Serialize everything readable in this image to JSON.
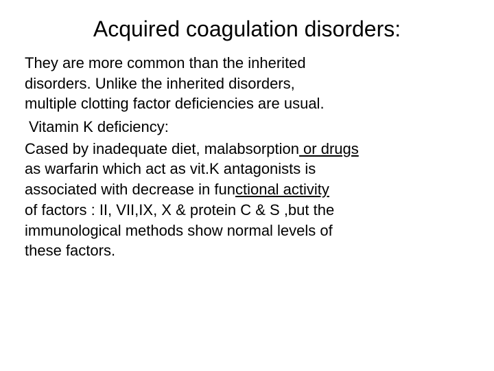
{
  "slide": {
    "title": "Acquired coagulation disorders:",
    "title_color": "#000000",
    "title_fontsize": 32,
    "body_fontsize": 22,
    "background_color": "#ffffff",
    "text_color": "#000000",
    "paragraph1": {
      "line1": "They are more common than the inherited",
      "line2": "disorders. Unlike the inherited disorders,",
      "line3": "multiple clotting factor deficiencies are usual."
    },
    "subtitle": " Vitamin K deficiency:",
    "paragraph2": {
      "line1_prefix": "Cased by inadequate diet, malabsorption",
      "line1_underlined": " or drugs ",
      "line2": "as warfarin which act as vit.K antagonists is",
      "line3_prefix": "associated with decrease in fun",
      "line3_underlined": "ctional activity ",
      "line4": "of factors : II, VII,IX, X & protein C & S ,but the",
      "line5": "immunological methods show normal levels of",
      "line6": "these factors."
    }
  }
}
